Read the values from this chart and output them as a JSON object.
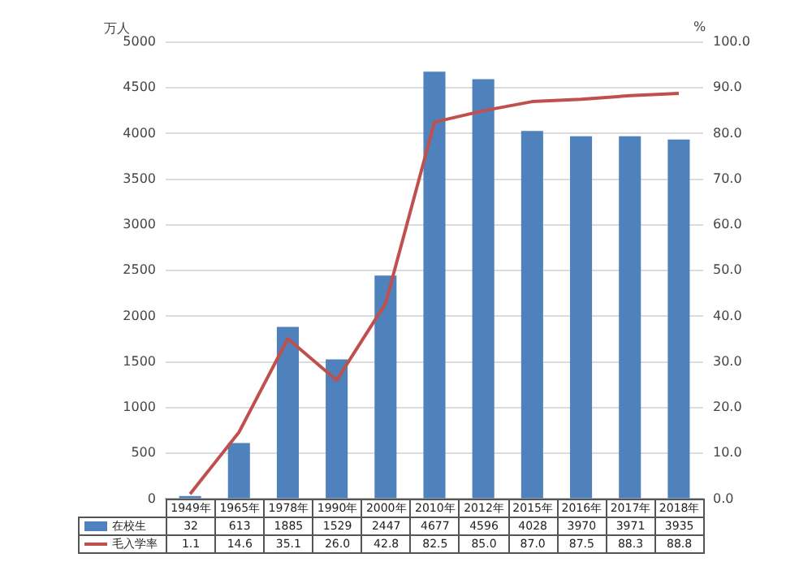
{
  "chart_data": {
    "type": "bar",
    "ylabel": "万人",
    "y2label": "%",
    "categories": [
      "1949年",
      "1965年",
      "1978年",
      "1990年",
      "2000年",
      "2010年",
      "2012年",
      "2015年",
      "2016年",
      "2017年",
      "2018年"
    ],
    "series": [
      {
        "name": "在校生",
        "color": "#4f81bd",
        "values": [
          32,
          613,
          1885,
          1529,
          2447,
          4677,
          4596,
          4028,
          3970,
          3971,
          3935
        ],
        "value_labels": [
          "32",
          "613",
          "1885",
          "1529",
          "2447",
          "4677",
          "4596",
          "4028",
          "3970",
          "3971",
          "3935"
        ]
      },
      {
        "name": "毛入学率",
        "type": "line",
        "axis": "y2",
        "color": "#c0504d",
        "values": [
          1.1,
          14.6,
          35.1,
          26.0,
          42.8,
          82.5,
          85.0,
          87.0,
          87.5,
          88.3,
          88.8
        ],
        "value_labels": [
          "1.1",
          "14.6",
          "35.1",
          "26.0",
          "42.8",
          "82.5",
          "85.0",
          "87.0",
          "87.5",
          "88.3",
          "88.8"
        ]
      }
    ],
    "ylim": [
      0,
      5000
    ],
    "yticks": [
      0,
      500,
      1000,
      1500,
      2000,
      2500,
      3000,
      3500,
      4000,
      4500,
      5000
    ],
    "y2lim": [
      0,
      100
    ],
    "y2ticks": [
      {
        "value": 0,
        "label": "0.0"
      },
      {
        "value": 10,
        "label": "10.0"
      },
      {
        "value": 20,
        "label": "20.0"
      },
      {
        "value": 30,
        "label": "30.0"
      },
      {
        "value": 40,
        "label": "40.0"
      },
      {
        "value": 50,
        "label": "50.0"
      },
      {
        "value": 60,
        "label": "60.0"
      },
      {
        "value": 70,
        "label": "70.0"
      },
      {
        "value": 80,
        "label": "80.0"
      },
      {
        "value": 90,
        "label": "90.0"
      },
      {
        "value": 100,
        "label": "100.0"
      }
    ],
    "grid": "y",
    "legend": "bottom",
    "marker": "none"
  }
}
